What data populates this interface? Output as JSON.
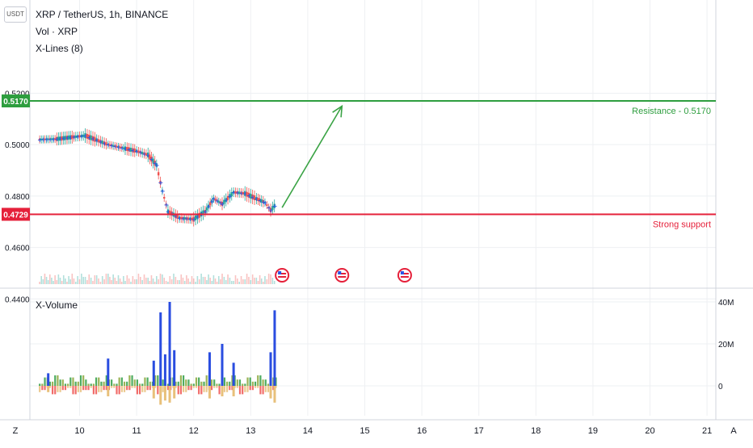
{
  "header": {
    "currency_button": "USDT",
    "symbol_line": "XRP / TetherUS, 1h, BINANCE",
    "indicators": [
      "Vol · XRP",
      "X-Lines (8)"
    ]
  },
  "colors": {
    "resistance": "#2e9e3f",
    "support": "#e5203a",
    "bull": "#26a69a",
    "bear": "#ef5350",
    "xline_marker": "#2a55e5",
    "arrow": "#3aa345",
    "grid": "#eef0f3"
  },
  "chart_data": [
    {
      "type": "candlestick",
      "pair": "XRP / TetherUS",
      "interval": "1h",
      "exchange": "BINANCE",
      "ylim": [
        0.439,
        0.528
      ],
      "x_ticks": [
        "10",
        "11",
        "12",
        "13",
        "14",
        "15",
        "16",
        "17",
        "18",
        "19",
        "20",
        "21"
      ],
      "y_ticks": [
        "0.5200",
        "0.5000",
        "0.4800",
        "0.4600",
        "0.4400"
      ],
      "price_path": [
        [
          9.3,
          0.502
        ],
        [
          9.6,
          0.5022
        ],
        [
          9.9,
          0.503
        ],
        [
          10.1,
          0.5035
        ],
        [
          10.3,
          0.5018
        ],
        [
          10.5,
          0.5
        ],
        [
          10.8,
          0.4985
        ],
        [
          11.0,
          0.4975
        ],
        [
          11.2,
          0.496
        ],
        [
          11.35,
          0.492
        ],
        [
          11.45,
          0.482
        ],
        [
          11.55,
          0.474
        ],
        [
          11.75,
          0.4715
        ],
        [
          12.0,
          0.471
        ],
        [
          12.2,
          0.474
        ],
        [
          12.35,
          0.479
        ],
        [
          12.5,
          0.477
        ],
        [
          12.7,
          0.4815
        ],
        [
          12.9,
          0.481
        ],
        [
          13.1,
          0.479
        ],
        [
          13.25,
          0.4775
        ],
        [
          13.35,
          0.4745
        ],
        [
          13.45,
          0.477
        ]
      ],
      "horizontal_lines": [
        {
          "price": 0.517,
          "price_label": "0.5170",
          "label": "Resistance - 0.5170"
        },
        {
          "price": 0.4729,
          "price_label": "0.4729",
          "label": "Strong support"
        }
      ],
      "projection_arrow": {
        "from": [
          13.55,
          0.4755
        ],
        "to": [
          14.6,
          0.515
        ]
      },
      "event_markers_x": [
        13.55,
        14.6,
        15.7
      ]
    },
    {
      "type": "bar",
      "title": "X-Volume",
      "y_ticks": [
        "40M",
        "20M",
        "0"
      ],
      "ylim": [
        -9,
        42
      ],
      "x": [
        9.45,
        10.5,
        11.3,
        11.42,
        11.5,
        11.58,
        11.66,
        12.28,
        12.5,
        12.7,
        13.35,
        13.42
      ],
      "buy_volume": [
        6,
        13,
        12,
        35,
        15,
        40,
        17,
        16,
        20,
        11,
        16,
        36
      ],
      "sell_volume": [
        -3,
        -5,
        -6,
        -9,
        -7,
        -8,
        -6,
        -6,
        -5,
        -5,
        -6,
        -8
      ]
    }
  ],
  "footer": {
    "left_button": "Z",
    "right_button": "A"
  }
}
